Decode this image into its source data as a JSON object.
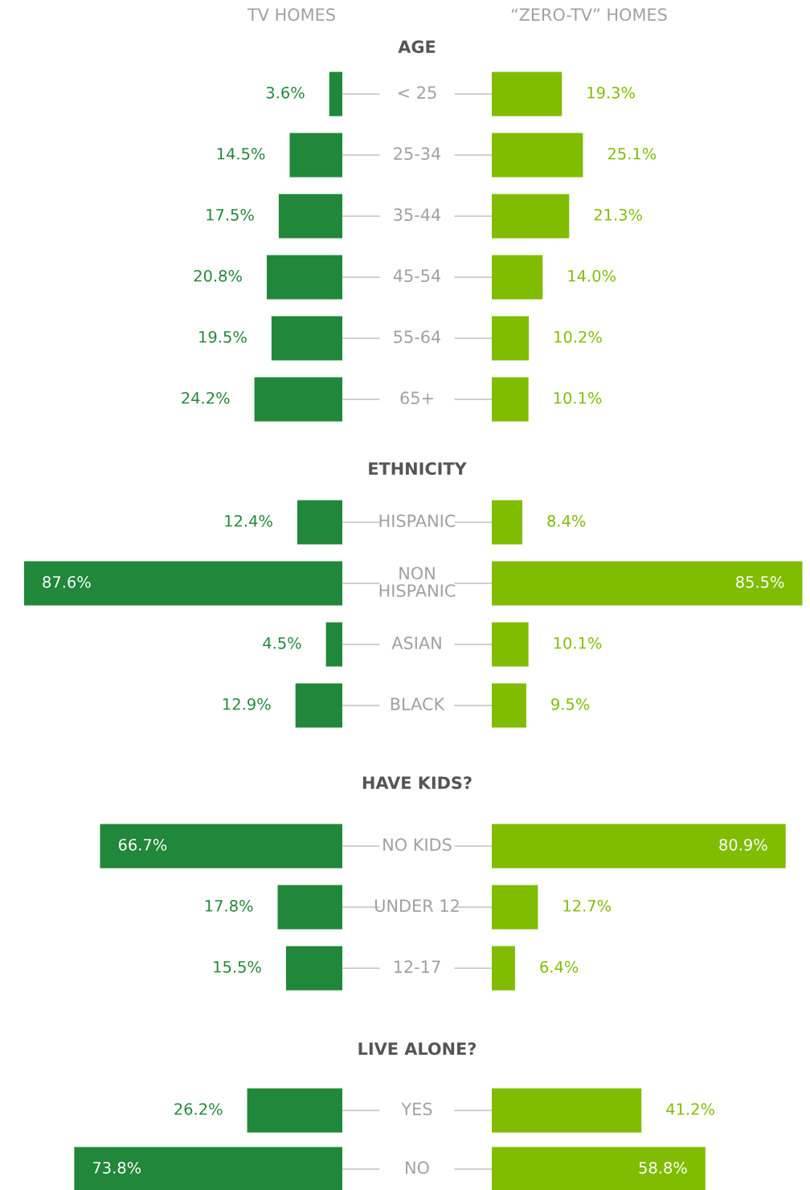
{
  "chart_data": [
    {
      "type": "bar",
      "orientation": "horizontal",
      "title": "AGE",
      "categories": [
        "< 25",
        "25-34",
        "35-44",
        "45-54",
        "55-64",
        "65+"
      ],
      "tick_labels": "y",
      "series": [
        {
          "name": "TV HOMES",
          "color": "#21873a",
          "values": [
            3.6,
            14.5,
            17.5,
            20.8,
            19.5,
            24.2
          ],
          "value_labels": [
            "3.6%",
            "14.5%",
            "17.5%",
            "20.8%",
            "19.5%",
            "24.2%"
          ]
        }
      ]
    },
    {
      "type": "bar",
      "orientation": "horizontal",
      "categories": [
        null,
        null,
        null,
        null,
        null,
        null
      ],
      "series": [
        {
          "name": "“ZERO-TV” HOMES",
          "color": "#80bc00",
          "values": [
            19.3,
            25.1,
            21.3,
            14.0,
            10.2,
            10.1
          ],
          "value_labels": [
            "19.3%",
            "25.1%",
            "21.3%",
            "14.0%",
            "10.2%",
            "10.1%"
          ]
        }
      ]
    },
    {
      "type": "bar",
      "orientation": "horizontal",
      "title": "ETHNICITY",
      "categories": [
        "HISPANIC",
        "NON HISPANIC",
        "ASIAN",
        "BLACK"
      ],
      "tick_labels": "y",
      "series": [
        {
          "color": "#21873a",
          "values": [
            12.4,
            87.6,
            4.5,
            12.9
          ],
          "value_labels": [
            "12.4%",
            "87.6%",
            "4.5%",
            "12.9%"
          ]
        }
      ]
    },
    {
      "type": "bar",
      "orientation": "horizontal",
      "categories": [
        null,
        null,
        null,
        null
      ],
      "series": [
        {
          "color": "#80bc00",
          "values": [
            8.4,
            85.5,
            10.1,
            9.5
          ],
          "value_labels": [
            "8.4%",
            "85.5%",
            "10.1%",
            "9.5%"
          ]
        }
      ]
    },
    {
      "type": "bar",
      "orientation": "horizontal",
      "title": "HAVE KIDS?",
      "categories": [
        "NO KIDS",
        "UNDER 12",
        "12-17"
      ],
      "tick_labels": "y",
      "series": [
        {
          "color": "#21873a",
          "values": [
            66.7,
            17.8,
            15.5
          ],
          "value_labels": [
            "66.7%",
            "17.8%",
            "15.5%"
          ]
        }
      ]
    },
    {
      "type": "bar",
      "orientation": "horizontal",
      "categories": [
        null,
        null,
        null
      ],
      "series": [
        {
          "color": "#80bc00",
          "values": [
            80.9,
            12.7,
            6.4
          ],
          "value_labels": [
            "80.9%",
            "12.7%",
            "6.4%"
          ]
        }
      ]
    },
    {
      "type": "bar",
      "orientation": "horizontal",
      "title": "LIVE ALONE?",
      "categories": [
        "YES",
        "NO"
      ],
      "tick_labels": "y",
      "series": [
        {
          "color": "#21873a",
          "values": [
            26.2,
            73.8
          ],
          "value_labels": [
            "26.2%",
            "73.8%"
          ]
        }
      ]
    },
    {
      "type": "bar",
      "orientation": "horizontal",
      "categories": [
        null,
        null
      ],
      "series": [
        {
          "color": "#80bc00",
          "values": [
            41.2,
            58.8
          ],
          "value_labels": [
            "41.2%",
            "58.8%"
          ]
        }
      ]
    }
  ]
}
